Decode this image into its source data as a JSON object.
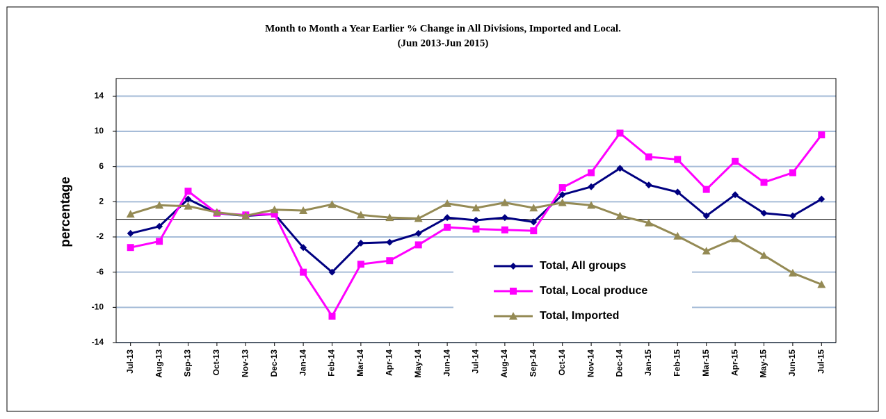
{
  "chart_data": {
    "type": "line",
    "title": "Month to Month a Year Earlier % Change in All Divisions, Imported and Local.",
    "subtitle": "(Jun 2013-Jun 2015)",
    "y_label": "percentage",
    "categories": [
      "Jul-13",
      "Aug-13",
      "Sep-13",
      "Oct-13",
      "Nov-13",
      "Dec-13",
      "Jan-14",
      "Feb-14",
      "Mar-14",
      "Apr-14",
      "May-14",
      "Jun-14",
      "Jul-14",
      "Aug-14",
      "Sep-14",
      "Oct-14",
      "Nov-14",
      "Dec-14",
      "Jan-15",
      "Feb-15",
      "Mar-15",
      "Apr-15",
      "May-15",
      "Jun-15",
      "Jul-15"
    ],
    "series": [
      {
        "name": "Total, All groups",
        "color": "#000080",
        "marker": "diamond",
        "values": [
          -1.6,
          -0.8,
          2.3,
          0.7,
          0.4,
          0.6,
          -3.2,
          -6.0,
          -2.7,
          -2.6,
          -1.6,
          0.2,
          -0.1,
          0.2,
          -0.3,
          2.8,
          3.7,
          5.8,
          3.9,
          3.1,
          0.4,
          2.8,
          0.7,
          0.4,
          2.3
        ]
      },
      {
        "name": "Total, Local produce",
        "color": "#ff00ff",
        "marker": "square",
        "values": [
          -3.2,
          -2.5,
          3.2,
          0.7,
          0.5,
          0.6,
          -6.0,
          -11.0,
          -5.1,
          -4.7,
          -2.9,
          -0.9,
          -1.1,
          -1.2,
          -1.3,
          3.6,
          5.3,
          9.8,
          7.1,
          6.8,
          3.4,
          6.6,
          4.2,
          5.3,
          9.6
        ]
      },
      {
        "name": "Total, Imported",
        "color": "#948a54",
        "marker": "triangle",
        "values": [
          0.6,
          1.6,
          1.5,
          0.8,
          0.4,
          1.1,
          1.0,
          1.7,
          0.5,
          0.2,
          0.1,
          1.8,
          1.3,
          1.9,
          1.3,
          1.9,
          1.6,
          0.4,
          -0.4,
          -1.9,
          -3.6,
          -2.2,
          -4.1,
          -6.1,
          -7.4
        ]
      }
    ],
    "ylim": [
      -14,
      16
    ],
    "yticks": [
      -14,
      -10,
      -6,
      -2,
      2,
      6,
      10,
      14
    ],
    "grid": true
  }
}
